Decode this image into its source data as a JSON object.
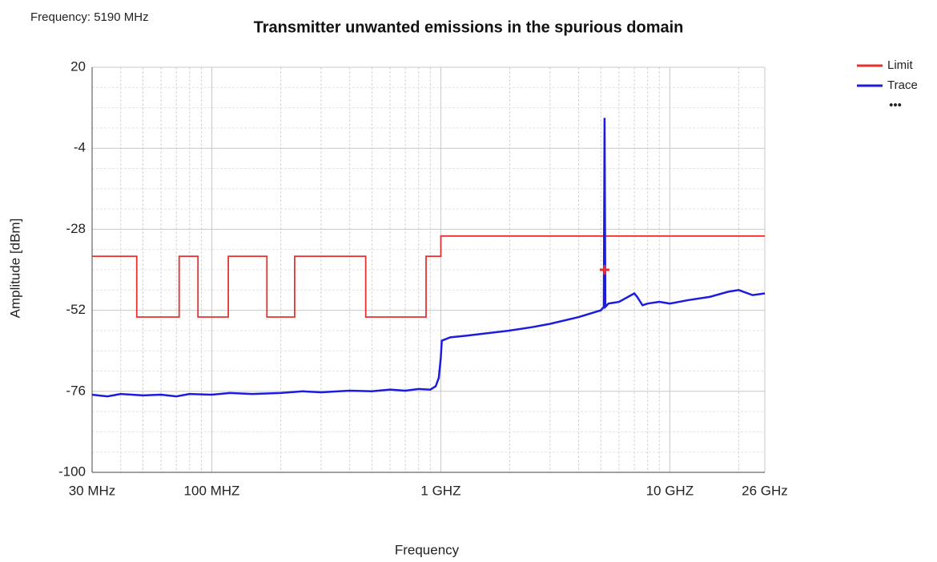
{
  "chart_data": {
    "type": "line",
    "title": "Transmitter unwanted emissions in the spurious domain",
    "subtitle": "Frequency: 5190 MHz",
    "x_label": "Frequency",
    "y_label": "Amplitude [dBm]",
    "x_log": true,
    "xlim": [
      30,
      26000
    ],
    "ylim": [
      -100,
      20
    ],
    "xticks": [
      {
        "value": 30,
        "label": "30 MHz"
      },
      {
        "value": 100,
        "label": "100 MHZ"
      },
      {
        "value": 1000,
        "label": "1 GHZ"
      },
      {
        "value": 10000,
        "label": "10 GHZ"
      },
      {
        "value": 26000,
        "label": "26 GHz"
      }
    ],
    "xminor_ticks": [
      40,
      50,
      60,
      70,
      80,
      90,
      200,
      300,
      400,
      500,
      600,
      700,
      800,
      900,
      2000,
      3000,
      4000,
      5000,
      6000,
      7000,
      8000,
      9000,
      20000
    ],
    "yticks": [
      -100,
      -76,
      -52,
      -28,
      -4,
      20
    ],
    "grid": true,
    "legend_position": "top-right",
    "legend_more": "•••",
    "series": [
      {
        "name": "Limit",
        "color": "#e8312f",
        "x": [
          30,
          47,
          47,
          72,
          72,
          87,
          87,
          118,
          118,
          174,
          174,
          230,
          230,
          470,
          470,
          862,
          862,
          1000,
          1000,
          26000
        ],
        "values": [
          -36,
          -36,
          -54,
          -54,
          -36,
          -36,
          -54,
          -54,
          -36,
          -36,
          -54,
          -54,
          -36,
          -36,
          -54,
          -54,
          -36,
          -36,
          -30,
          -30
        ]
      },
      {
        "name": "Trace",
        "color": "#1c1ce0",
        "x": [
          30,
          35,
          40,
          50,
          60,
          70,
          80,
          100,
          120,
          150,
          200,
          250,
          300,
          400,
          500,
          600,
          700,
          800,
          900,
          950,
          980,
          1000,
          1010,
          1100,
          1300,
          1500,
          2000,
          2500,
          3000,
          4000,
          5000,
          5150,
          5190,
          5230,
          5400,
          6000,
          7000,
          7200,
          7600,
          8000,
          9000,
          10000,
          12000,
          15000,
          18000,
          20000,
          23000,
          26000
        ],
        "values": [
          -77,
          -77.5,
          -76.8,
          -77.2,
          -77,
          -77.5,
          -76.8,
          -77,
          -76.5,
          -76.8,
          -76.5,
          -76,
          -76.3,
          -75.8,
          -76,
          -75.5,
          -75.8,
          -75.3,
          -75.5,
          -74.5,
          -72,
          -66,
          -61,
          -60,
          -59.5,
          -59,
          -58,
          -57,
          -56,
          -54,
          -52,
          -51,
          5,
          -51,
          -50,
          -49.5,
          -47,
          -48,
          -50.5,
          -50,
          -49.5,
          -50,
          -49,
          -48,
          -46.5,
          -46,
          -47.5,
          -47
        ]
      }
    ],
    "marker": {
      "x": 5190,
      "y": -40,
      "color": "#e8312f"
    }
  }
}
